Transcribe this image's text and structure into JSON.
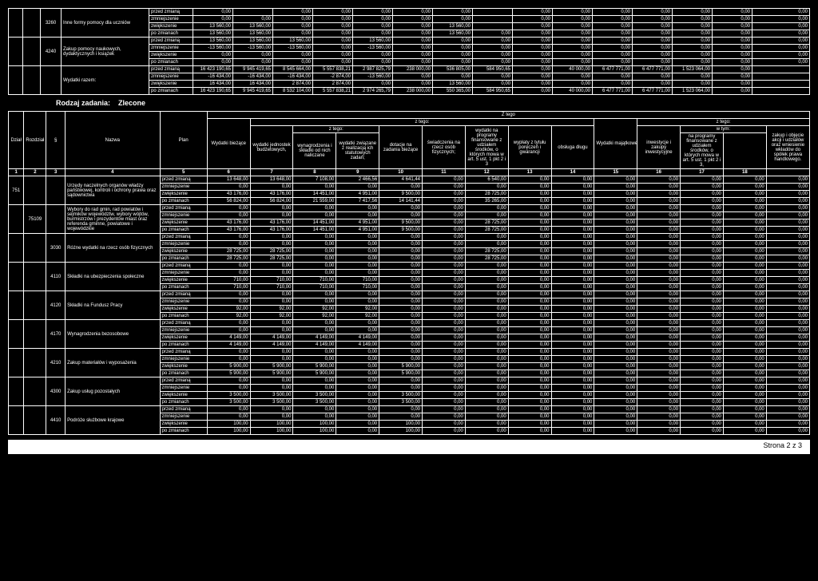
{
  "top": {
    "rows": [
      {
        "par": "3260",
        "desc": "Inne formy pomocy dla uczniów",
        "labels": [
          "przed zmianą",
          "zmniejszenie",
          "zwiększenie",
          "po zmianach"
        ],
        "data": [
          [
            "0,00",
            "",
            "0,00",
            "0,00",
            "0,00",
            "0,00",
            "0,00",
            "",
            "0,00",
            "0,00",
            "0,00",
            "0,00",
            "0,00",
            "0,00",
            "0,00"
          ],
          [
            "0,00",
            "0,00",
            "0,00",
            "0,00",
            "0,00",
            "0,00",
            "0,00",
            "",
            "0,00",
            "0,00",
            "0,00",
            "0,00",
            "0,00",
            "0,00",
            "0,00"
          ],
          [
            "13 560,00",
            "13 560,00",
            "0,00",
            "0,00",
            "0,00",
            "0,00",
            "13 560,00",
            "",
            "0,00",
            "0,00",
            "0,00",
            "0,00",
            "0,00",
            "0,00",
            "0,00"
          ],
          [
            "13 560,00",
            "13 560,00",
            "0,00",
            "0,00",
            "0,00",
            "0,00",
            "13 560,00",
            "0,00",
            "0,00",
            "0,00",
            "0,00",
            "0,00",
            "0,00",
            "0,00",
            "0,00"
          ]
        ]
      },
      {
        "par": "4240",
        "desc": "Zakup pomocy naukowych, dydaktycznych i książek",
        "labels": [
          "przed zmianą",
          "zmniejszenie",
          "zwiększenie",
          "po zmianach"
        ],
        "data": [
          [
            "13 560,00",
            "13 560,00",
            "13 560,00",
            "0,00",
            "13 560,00",
            "0,00",
            "0,00",
            "0,00",
            "0,00",
            "0,00",
            "0,00",
            "0,00",
            "0,00",
            "0,00",
            "0,00"
          ],
          [
            "-13 560,00",
            "-13 560,00",
            "-13 560,00",
            "0,00",
            "-13 560,00",
            "0,00",
            "0,00",
            "0,00",
            "0,00",
            "0,00",
            "0,00",
            "0,00",
            "0,00",
            "0,00",
            "0,00"
          ],
          [
            "0,00",
            "0,00",
            "0,00",
            "0,00",
            "0,00",
            "0,00",
            "0,00",
            "0,00",
            "0,00",
            "0,00",
            "0,00",
            "0,00",
            "0,00",
            "0,00",
            "0,00"
          ],
          [
            "0,00",
            "0,00",
            "0,00",
            "0,00",
            "0,00",
            "0,00",
            "0,00",
            "0,00",
            "0,00",
            "0,00",
            "0,00",
            "0,00",
            "0,00",
            "0,00",
            "0,00"
          ]
        ]
      },
      {
        "par": "",
        "desc": "Wydatki razem:",
        "labels": [
          "przed zmianą",
          "zmniejszenie",
          "zwiększenie",
          "po zmianach"
        ],
        "data": [
          [
            "16 423 190,65",
            "9 945 419,65",
            "8 545 664,00",
            "5 557 838,21",
            "2 987 825,79",
            "238 000,00",
            "536 805,00",
            "584 950,65",
            "0,00",
            "40 000,00",
            "6 477 771,00",
            "6 477 771,00",
            "1 523 064,00",
            "0,00",
            ""
          ],
          [
            "-16 434,00",
            "-16 434,00",
            "-16 434,00",
            "-2 874,00",
            "-13 560,00",
            "0,00",
            "0,00",
            "0,00",
            "0,00",
            "0,00",
            "0,00",
            "0,00",
            "0,00",
            "0,00",
            ""
          ],
          [
            "16 434,00",
            "16 434,00",
            "2 874,00",
            "2 874,00",
            "0,00",
            "0,00",
            "13 560,00",
            "0,00",
            "0,00",
            "0,00",
            "0,00",
            "0,00",
            "0,00",
            "0,00",
            ""
          ],
          [
            "16 423 190,65",
            "9 945 419,65",
            "8 532 104,00",
            "5 557 838,21",
            "2 974 265,79",
            "238 000,00",
            "550 365,00",
            "584 950,65",
            "0,00",
            "40 000,00",
            "6 477 771,00",
            "6 477 771,00",
            "1 523 064,00",
            "0,00",
            ""
          ]
        ]
      }
    ]
  },
  "section": {
    "label": "Rodzaj zadania:",
    "value": "Zlecone"
  },
  "headers": {
    "cols": [
      "Dział",
      "Rozdział",
      "§",
      "Nazwa",
      "Plan",
      "Wydatki bieżące",
      "wydatki jednostek budżetowych,",
      "wynagrodzenia i składki od nich naliczane",
      "wydatki związane z realizacją ich statutowych zadań;",
      "dotacje na zadania bieżące",
      "świadczenia na rzecz osób fizycznych;",
      "wydatki na programy finansowane z udziałem środków, o których mowa w art. 5 ust. 1 pkt 2 i 3",
      "wypłaty z tytułu poręczeń i gwarancji",
      "obsługa długu",
      "Wydatki majątkowe",
      "inwestycje i zakupy inwestycyjne",
      "na programy finansowane z udziałem środków, o których mowa w art. 5 ust. 1 pkt 2 i 3,",
      "zakup i objęcie akcji i udziałów oraz wniesienie wkładów do spółek prawa handlowego."
    ],
    "ztego": "Z tego",
    "ztego2": "z tego:",
    "wtym": "w tym:",
    "nums": [
      "1",
      "2",
      "3",
      "4",
      "5",
      "6",
      "7",
      "8",
      "9",
      "10",
      "11",
      "12",
      "13",
      "14",
      "15",
      "16",
      "17",
      "18"
    ]
  },
  "body": [
    {
      "dzial": "751",
      "rozdz": "",
      "par": "",
      "desc": "Urzędy naczelnych organów władzy państwowej, kontroli i ochrony prawa oraz sądownictwa",
      "rows": [
        [
          "przed zmianą",
          "13 648,00",
          "13 648,00",
          "7 108,00",
          "2 466,56",
          "4 641,44",
          "0,00",
          "6 540,00",
          "0,00",
          "0,00",
          "0,00",
          "0,00",
          "0,00",
          "0,00",
          "0,00"
        ],
        [
          "zmniejszenie",
          "0,00",
          "0,00",
          "0,00",
          "0,00",
          "0,00",
          "0,00",
          "0,00",
          "0,00",
          "0,00",
          "0,00",
          "0,00",
          "0,00",
          "0,00",
          "0,00"
        ],
        [
          "zwiększenie",
          "43 176,00",
          "43 176,00",
          "14 451,00",
          "4 951,00",
          "9 500,00",
          "0,00",
          "28 725,00",
          "0,00",
          "0,00",
          "0,00",
          "0,00",
          "0,00",
          "0,00",
          "0,00"
        ],
        [
          "po zmianach",
          "56 824,00",
          "56 824,00",
          "21 559,00",
          "7 417,56",
          "14 141,44",
          "0,00",
          "35 265,00",
          "0,00",
          "0,00",
          "0,00",
          "0,00",
          "0,00",
          "0,00",
          "0,00"
        ]
      ]
    },
    {
      "dzial": "",
      "rozdz": "75109",
      "par": "",
      "desc": "Wybory do rad gmin, rad powiatów i sejmików województw, wybory wójtów, burmistrzów i prezydentów miast oraz referenda gminne, powiatowe i wojewódzkie",
      "rows": [
        [
          "przed zmianą",
          "0,00",
          "0,00",
          "0,00",
          "0,00",
          "0,00",
          "0,00",
          "0,00",
          "0,00",
          "0,00",
          "0,00",
          "0,00",
          "0,00",
          "0,00",
          "0,00"
        ],
        [
          "zmniejszenie",
          "0,00",
          "0,00",
          "0,00",
          "0,00",
          "0,00",
          "0,00",
          "0,00",
          "0,00",
          "0,00",
          "0,00",
          "0,00",
          "0,00",
          "0,00",
          "0,00"
        ],
        [
          "zwiększenie",
          "43 176,00",
          "43 176,00",
          "14 451,00",
          "4 951,00",
          "9 500,00",
          "0,00",
          "28 725,00",
          "0,00",
          "0,00",
          "0,00",
          "0,00",
          "0,00",
          "0,00",
          "0,00"
        ],
        [
          "po zmianach",
          "43 176,00",
          "43 176,00",
          "14 451,00",
          "4 951,00",
          "9 500,00",
          "0,00",
          "28 725,00",
          "0,00",
          "0,00",
          "0,00",
          "0,00",
          "0,00",
          "0,00",
          "0,00"
        ]
      ]
    },
    {
      "dzial": "",
      "rozdz": "",
      "par": "3030",
      "desc": "Różne wydatki na rzecz osób fizycznych",
      "rows": [
        [
          "przed zmianą",
          "0,00",
          "0,00",
          "0,00",
          "0,00",
          "0,00",
          "0,00",
          "0,00",
          "0,00",
          "0,00",
          "0,00",
          "0,00",
          "0,00",
          "0,00",
          "0,00"
        ],
        [
          "zmniejszenie",
          "0,00",
          "0,00",
          "0,00",
          "0,00",
          "0,00",
          "0,00",
          "0,00",
          "0,00",
          "0,00",
          "0,00",
          "0,00",
          "0,00",
          "0,00",
          "0,00"
        ],
        [
          "zwiększenie",
          "28 725,00",
          "28 725,00",
          "0,00",
          "0,00",
          "0,00",
          "0,00",
          "28 725,00",
          "0,00",
          "0,00",
          "0,00",
          "0,00",
          "0,00",
          "0,00",
          "0,00"
        ],
        [
          "po zmianach",
          "28 725,00",
          "28 725,00",
          "0,00",
          "0,00",
          "0,00",
          "0,00",
          "28 725,00",
          "0,00",
          "0,00",
          "0,00",
          "0,00",
          "0,00",
          "0,00",
          "0,00"
        ]
      ]
    },
    {
      "dzial": "",
      "rozdz": "",
      "par": "4110",
      "desc": "Składki na ubezpieczenia społeczne",
      "rows": [
        [
          "przed zmianą",
          "0,00",
          "0,00",
          "0,00",
          "0,00",
          "0,00",
          "0,00",
          "0,00",
          "0,00",
          "0,00",
          "0,00",
          "0,00",
          "0,00",
          "0,00",
          "0,00"
        ],
        [
          "zmniejszenie",
          "0,00",
          "0,00",
          "0,00",
          "0,00",
          "0,00",
          "0,00",
          "0,00",
          "0,00",
          "0,00",
          "0,00",
          "0,00",
          "0,00",
          "0,00",
          "0,00"
        ],
        [
          "zwiększenie",
          "710,00",
          "710,00",
          "710,00",
          "710,00",
          "0,00",
          "0,00",
          "0,00",
          "0,00",
          "0,00",
          "0,00",
          "0,00",
          "0,00",
          "0,00",
          "0,00"
        ],
        [
          "po zmianach",
          "710,00",
          "710,00",
          "710,00",
          "710,00",
          "0,00",
          "0,00",
          "0,00",
          "0,00",
          "0,00",
          "0,00",
          "0,00",
          "0,00",
          "0,00",
          "0,00"
        ]
      ]
    },
    {
      "dzial": "",
      "rozdz": "",
      "par": "4120",
      "desc": "Składki na Fundusz Pracy",
      "rows": [
        [
          "przed zmianą",
          "0,00",
          "0,00",
          "0,00",
          "0,00",
          "0,00",
          "0,00",
          "0,00",
          "0,00",
          "0,00",
          "0,00",
          "0,00",
          "0,00",
          "0,00",
          "0,00"
        ],
        [
          "zmniejszenie",
          "0,00",
          "0,00",
          "0,00",
          "0,00",
          "0,00",
          "0,00",
          "0,00",
          "0,00",
          "0,00",
          "0,00",
          "0,00",
          "0,00",
          "0,00",
          "0,00"
        ],
        [
          "zwiększenie",
          "92,00",
          "92,00",
          "92,00",
          "92,00",
          "0,00",
          "0,00",
          "0,00",
          "0,00",
          "0,00",
          "0,00",
          "0,00",
          "0,00",
          "0,00",
          "0,00"
        ],
        [
          "po zmianach",
          "92,00",
          "92,00",
          "92,00",
          "92,00",
          "0,00",
          "0,00",
          "0,00",
          "0,00",
          "0,00",
          "0,00",
          "0,00",
          "0,00",
          "0,00",
          "0,00"
        ]
      ]
    },
    {
      "dzial": "",
      "rozdz": "",
      "par": "4170",
      "desc": "Wynagrodzenia bezosobowe",
      "rows": [
        [
          "przed zmianą",
          "0,00",
          "0,00",
          "0,00",
          "0,00",
          "0,00",
          "0,00",
          "0,00",
          "0,00",
          "0,00",
          "0,00",
          "0,00",
          "0,00",
          "0,00",
          "0,00"
        ],
        [
          "zmniejszenie",
          "0,00",
          "0,00",
          "0,00",
          "0,00",
          "0,00",
          "0,00",
          "0,00",
          "0,00",
          "0,00",
          "0,00",
          "0,00",
          "0,00",
          "0,00",
          "0,00"
        ],
        [
          "zwiększenie",
          "4 149,00",
          "4 149,00",
          "4 149,00",
          "4 149,00",
          "0,00",
          "0,00",
          "0,00",
          "0,00",
          "0,00",
          "0,00",
          "0,00",
          "0,00",
          "0,00",
          "0,00"
        ],
        [
          "po zmianach",
          "4 149,00",
          "4 149,00",
          "4 149,00",
          "4 149,00",
          "0,00",
          "0,00",
          "0,00",
          "0,00",
          "0,00",
          "0,00",
          "0,00",
          "0,00",
          "0,00",
          "0,00"
        ]
      ]
    },
    {
      "dzial": "",
      "rozdz": "",
      "par": "4210",
      "desc": "Zakup materiałów i wyposażenia",
      "rows": [
        [
          "przed zmianą",
          "0,00",
          "0,00",
          "0,00",
          "0,00",
          "0,00",
          "0,00",
          "0,00",
          "0,00",
          "0,00",
          "0,00",
          "0,00",
          "0,00",
          "0,00",
          "0,00"
        ],
        [
          "zmniejszenie",
          "0,00",
          "0,00",
          "0,00",
          "0,00",
          "0,00",
          "0,00",
          "0,00",
          "0,00",
          "0,00",
          "0,00",
          "0,00",
          "0,00",
          "0,00",
          "0,00"
        ],
        [
          "zwiększenie",
          "5 900,00",
          "5 900,00",
          "5 900,00",
          "0,00",
          "5 900,00",
          "0,00",
          "0,00",
          "0,00",
          "0,00",
          "0,00",
          "0,00",
          "0,00",
          "0,00",
          "0,00"
        ],
        [
          "po zmianach",
          "5 900,00",
          "5 900,00",
          "5 900,00",
          "0,00",
          "5 900,00",
          "0,00",
          "0,00",
          "0,00",
          "0,00",
          "0,00",
          "0,00",
          "0,00",
          "0,00",
          "0,00"
        ]
      ]
    },
    {
      "dzial": "",
      "rozdz": "",
      "par": "4300",
      "desc": "Zakup usług pozostałych",
      "rows": [
        [
          "przed zmianą",
          "0,00",
          "0,00",
          "0,00",
          "0,00",
          "0,00",
          "0,00",
          "0,00",
          "0,00",
          "0,00",
          "0,00",
          "0,00",
          "0,00",
          "0,00",
          "0,00"
        ],
        [
          "zmniejszenie",
          "0,00",
          "0,00",
          "0,00",
          "0,00",
          "0,00",
          "0,00",
          "0,00",
          "0,00",
          "0,00",
          "0,00",
          "0,00",
          "0,00",
          "0,00",
          "0,00"
        ],
        [
          "zwiększenie",
          "3 500,00",
          "3 500,00",
          "3 500,00",
          "0,00",
          "3 500,00",
          "0,00",
          "0,00",
          "0,00",
          "0,00",
          "0,00",
          "0,00",
          "0,00",
          "0,00",
          "0,00"
        ],
        [
          "po zmianach",
          "3 500,00",
          "3 500,00",
          "3 500,00",
          "0,00",
          "3 500,00",
          "0,00",
          "0,00",
          "0,00",
          "0,00",
          "0,00",
          "0,00",
          "0,00",
          "0,00",
          "0,00"
        ]
      ]
    },
    {
      "dzial": "",
      "rozdz": "",
      "par": "4410",
      "desc": "Podróże służbowe krajowe",
      "rows": [
        [
          "przed zmianą",
          "0,00",
          "0,00",
          "0,00",
          "0,00",
          "0,00",
          "0,00",
          "0,00",
          "0,00",
          "0,00",
          "0,00",
          "0,00",
          "0,00",
          "0,00",
          "0,00"
        ],
        [
          "zmniejszenie",
          "0,00",
          "0,00",
          "0,00",
          "0,00",
          "0,00",
          "0,00",
          "0,00",
          "0,00",
          "0,00",
          "0,00",
          "0,00",
          "0,00",
          "0,00",
          "0,00"
        ],
        [
          "zwiększenie",
          "100,00",
          "100,00",
          "100,00",
          "0,00",
          "100,00",
          "0,00",
          "0,00",
          "0,00",
          "0,00",
          "0,00",
          "0,00",
          "0,00",
          "0,00",
          "0,00"
        ],
        [
          "po zmianach",
          "100,00",
          "100,00",
          "100,00",
          "0,00",
          "100,00",
          "0,00",
          "0,00",
          "0,00",
          "0,00",
          "0,00",
          "0,00",
          "0,00",
          "0,00",
          "0,00"
        ]
      ]
    }
  ],
  "footer": "Strona 2 z 3"
}
